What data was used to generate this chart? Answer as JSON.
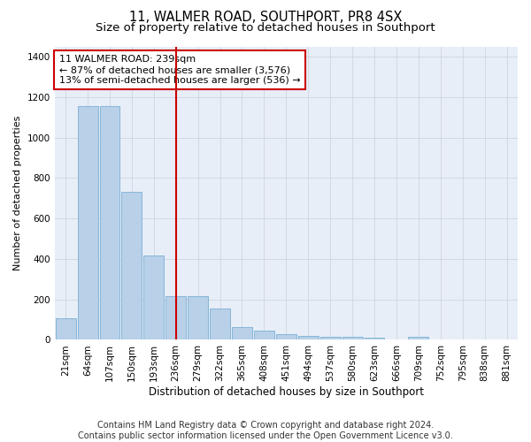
{
  "title1": "11, WALMER ROAD, SOUTHPORT, PR8 4SX",
  "title2": "Size of property relative to detached houses in Southport",
  "xlabel": "Distribution of detached houses by size in Southport",
  "ylabel": "Number of detached properties",
  "categories": [
    "21sqm",
    "64sqm",
    "107sqm",
    "150sqm",
    "193sqm",
    "236sqm",
    "279sqm",
    "322sqm",
    "365sqm",
    "408sqm",
    "451sqm",
    "494sqm",
    "537sqm",
    "580sqm",
    "623sqm",
    "666sqm",
    "709sqm",
    "752sqm",
    "795sqm",
    "838sqm",
    "881sqm"
  ],
  "values": [
    105,
    1155,
    1155,
    730,
    415,
    215,
    215,
    155,
    65,
    45,
    28,
    18,
    14,
    13,
    12,
    0,
    13,
    0,
    0,
    0,
    0
  ],
  "bar_color": "#b8d0e8",
  "bar_edge_color": "#7aafd4",
  "vline_x": 5,
  "vline_color": "#cc0000",
  "annotation_line1": "11 WALMER ROAD: 239sqm",
  "annotation_line2": "← 87% of detached houses are smaller (3,576)",
  "annotation_line3": "13% of semi-detached houses are larger (536) →",
  "annotation_box_color": "#ffffff",
  "annotation_box_edge": "#cc0000",
  "ylim": [
    0,
    1450
  ],
  "yticks": [
    0,
    200,
    400,
    600,
    800,
    1000,
    1200,
    1400
  ],
  "grid_color": "#cdd5e0",
  "bg_color": "#e8eef7",
  "footer": "Contains HM Land Registry data © Crown copyright and database right 2024.\nContains public sector information licensed under the Open Government Licence v3.0.",
  "title1_fontsize": 10.5,
  "title2_fontsize": 9.5,
  "xlabel_fontsize": 8.5,
  "ylabel_fontsize": 8,
  "tick_fontsize": 7.5,
  "footer_fontsize": 7,
  "annot_fontsize": 8
}
